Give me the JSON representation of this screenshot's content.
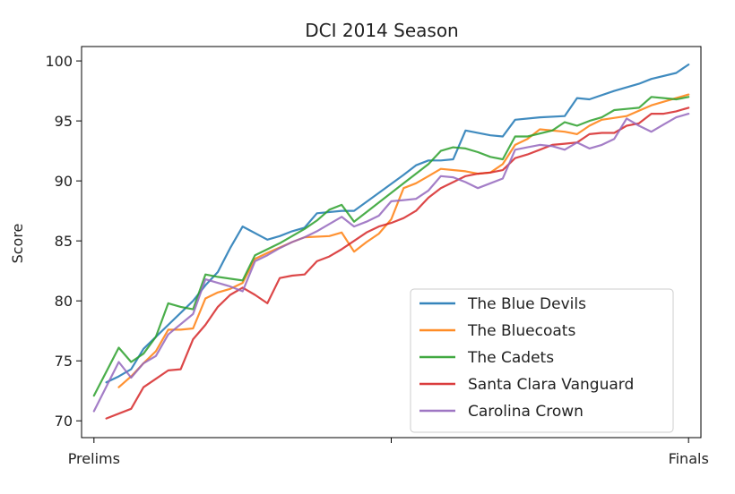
{
  "chart_data": {
    "type": "line",
    "title": "DCI 2014 Season",
    "xlabel": "",
    "ylabel": "Score",
    "xlim": [
      -1,
      49
    ],
    "ylim": [
      68.6,
      101.2
    ],
    "x_ticks": [
      {
        "x": 0,
        "label": "Prelims"
      },
      {
        "x": 24,
        "label": ""
      },
      {
        "x": 48,
        "label": "Finals"
      }
    ],
    "y_ticks": [
      70,
      75,
      80,
      85,
      90,
      95,
      100
    ],
    "grid": false,
    "legend_position": "lower-right",
    "series": [
      {
        "name": "The Blue Devils",
        "color": "#1f77b4",
        "points": [
          [
            1,
            73.2
          ],
          [
            2,
            73.7
          ],
          [
            3,
            74.3
          ],
          [
            4,
            76.0
          ],
          [
            5,
            77.0
          ],
          [
            6,
            78.0
          ],
          [
            7,
            79.0
          ],
          [
            8,
            80.0
          ],
          [
            9,
            81.3
          ],
          [
            10,
            82.4
          ],
          [
            11,
            84.4
          ],
          [
            12,
            86.2
          ],
          [
            14,
            85.1
          ],
          [
            15,
            85.4
          ],
          [
            16,
            85.8
          ],
          [
            17,
            86.1
          ],
          [
            18,
            87.3
          ],
          [
            20,
            87.5
          ],
          [
            21,
            87.5
          ],
          [
            23,
            89.0
          ],
          [
            25,
            90.5
          ],
          [
            26,
            91.3
          ],
          [
            27,
            91.7
          ],
          [
            28,
            91.7
          ],
          [
            29,
            91.8
          ],
          [
            30,
            94.2
          ],
          [
            32,
            93.8
          ],
          [
            33,
            93.7
          ],
          [
            34,
            95.1
          ],
          [
            36,
            95.3
          ],
          [
            38,
            95.4
          ],
          [
            39,
            96.9
          ],
          [
            40,
            96.8
          ],
          [
            42,
            97.5
          ],
          [
            44,
            98.1
          ],
          [
            45,
            98.5
          ],
          [
            47,
            99.0
          ],
          [
            48,
            99.7
          ]
        ]
      },
      {
        "name": "The Bluecoats",
        "color": "#ff7f0e",
        "points": [
          [
            2,
            72.8
          ],
          [
            3,
            73.7
          ],
          [
            4,
            74.8
          ],
          [
            5,
            75.8
          ],
          [
            6,
            77.6
          ],
          [
            7,
            77.6
          ],
          [
            8,
            77.7
          ],
          [
            9,
            80.2
          ],
          [
            10,
            80.7
          ],
          [
            11,
            81.0
          ],
          [
            12,
            81.5
          ],
          [
            13,
            83.5
          ],
          [
            14,
            84.0
          ],
          [
            16,
            84.9
          ],
          [
            17,
            85.3
          ],
          [
            19,
            85.4
          ],
          [
            20,
            85.7
          ],
          [
            21,
            84.1
          ],
          [
            22,
            84.9
          ],
          [
            23,
            85.6
          ],
          [
            24,
            86.8
          ],
          [
            25,
            89.4
          ],
          [
            26,
            89.8
          ],
          [
            27,
            90.4
          ],
          [
            28,
            91.0
          ],
          [
            30,
            90.8
          ],
          [
            31,
            90.6
          ],
          [
            32,
            90.7
          ],
          [
            33,
            91.4
          ],
          [
            34,
            93.0
          ],
          [
            35,
            93.5
          ],
          [
            36,
            94.3
          ],
          [
            38,
            94.1
          ],
          [
            39,
            93.9
          ],
          [
            40,
            94.6
          ],
          [
            41,
            95.1
          ],
          [
            43,
            95.4
          ],
          [
            45,
            96.3
          ],
          [
            47,
            96.9
          ],
          [
            48,
            97.2
          ]
        ]
      },
      {
        "name": "The Cadets",
        "color": "#2ca02c",
        "points": [
          [
            0,
            72.1
          ],
          [
            2,
            76.1
          ],
          [
            3,
            74.9
          ],
          [
            4,
            75.6
          ],
          [
            5,
            77.0
          ],
          [
            6,
            79.8
          ],
          [
            7,
            79.5
          ],
          [
            8,
            79.3
          ],
          [
            9,
            82.2
          ],
          [
            10,
            82.0
          ],
          [
            12,
            81.7
          ],
          [
            13,
            83.8
          ],
          [
            15,
            84.8
          ],
          [
            16,
            85.4
          ],
          [
            17,
            86.0
          ],
          [
            18,
            86.7
          ],
          [
            19,
            87.6
          ],
          [
            20,
            88.0
          ],
          [
            21,
            86.6
          ],
          [
            22,
            87.4
          ],
          [
            23,
            88.2
          ],
          [
            24,
            89.0
          ],
          [
            25,
            89.8
          ],
          [
            26,
            90.6
          ],
          [
            27,
            91.4
          ],
          [
            28,
            92.5
          ],
          [
            29,
            92.8
          ],
          [
            30,
            92.7
          ],
          [
            31,
            92.4
          ],
          [
            32,
            92.0
          ],
          [
            33,
            91.8
          ],
          [
            34,
            93.7
          ],
          [
            35,
            93.7
          ],
          [
            37,
            94.2
          ],
          [
            38,
            94.9
          ],
          [
            39,
            94.6
          ],
          [
            40,
            95.0
          ],
          [
            41,
            95.3
          ],
          [
            42,
            95.9
          ],
          [
            43,
            96.0
          ],
          [
            44,
            96.1
          ],
          [
            45,
            97.0
          ],
          [
            46,
            96.9
          ],
          [
            47,
            96.8
          ],
          [
            48,
            97.0
          ]
        ]
      },
      {
        "name": "Santa Clara Vanguard",
        "color": "#d62728",
        "points": [
          [
            1,
            70.2
          ],
          [
            3,
            71.0
          ],
          [
            4,
            72.8
          ],
          [
            5,
            73.5
          ],
          [
            6,
            74.2
          ],
          [
            7,
            74.3
          ],
          [
            8,
            76.8
          ],
          [
            9,
            78.0
          ],
          [
            10,
            79.5
          ],
          [
            11,
            80.5
          ],
          [
            12,
            81.1
          ],
          [
            13,
            80.5
          ],
          [
            14,
            79.8
          ],
          [
            15,
            81.9
          ],
          [
            16,
            82.1
          ],
          [
            17,
            82.2
          ],
          [
            18,
            83.3
          ],
          [
            19,
            83.7
          ],
          [
            20,
            84.3
          ],
          [
            21,
            85.0
          ],
          [
            22,
            85.7
          ],
          [
            23,
            86.2
          ],
          [
            24,
            86.5
          ],
          [
            25,
            86.9
          ],
          [
            26,
            87.5
          ],
          [
            27,
            88.6
          ],
          [
            28,
            89.4
          ],
          [
            29,
            89.9
          ],
          [
            30,
            90.4
          ],
          [
            31,
            90.6
          ],
          [
            32,
            90.7
          ],
          [
            33,
            90.9
          ],
          [
            34,
            91.9
          ],
          [
            35,
            92.2
          ],
          [
            36,
            92.6
          ],
          [
            37,
            93.0
          ],
          [
            38,
            93.1
          ],
          [
            39,
            93.2
          ],
          [
            40,
            93.9
          ],
          [
            41,
            94.0
          ],
          [
            42,
            94.0
          ],
          [
            43,
            94.6
          ],
          [
            44,
            94.8
          ],
          [
            45,
            95.6
          ],
          [
            46,
            95.6
          ],
          [
            47,
            95.8
          ],
          [
            48,
            96.1
          ]
        ]
      },
      {
        "name": "Carolina Crown",
        "color": "#9467bd",
        "points": [
          [
            0,
            70.8
          ],
          [
            2,
            74.9
          ],
          [
            3,
            73.6
          ],
          [
            4,
            74.8
          ],
          [
            5,
            75.4
          ],
          [
            6,
            77.2
          ],
          [
            8,
            78.9
          ],
          [
            9,
            81.8
          ],
          [
            10,
            81.5
          ],
          [
            11,
            81.2
          ],
          [
            12,
            80.8
          ],
          [
            13,
            83.3
          ],
          [
            14,
            83.8
          ],
          [
            15,
            84.4
          ],
          [
            16,
            84.9
          ],
          [
            17,
            85.3
          ],
          [
            18,
            85.8
          ],
          [
            20,
            87.0
          ],
          [
            21,
            86.2
          ],
          [
            22,
            86.6
          ],
          [
            23,
            87.1
          ],
          [
            24,
            88.3
          ],
          [
            25,
            88.4
          ],
          [
            26,
            88.5
          ],
          [
            27,
            89.2
          ],
          [
            28,
            90.4
          ],
          [
            29,
            90.3
          ],
          [
            30,
            89.9
          ],
          [
            31,
            89.4
          ],
          [
            32,
            89.8
          ],
          [
            33,
            90.2
          ],
          [
            34,
            92.6
          ],
          [
            35,
            92.8
          ],
          [
            36,
            93.0
          ],
          [
            37,
            92.9
          ],
          [
            38,
            92.6
          ],
          [
            39,
            93.2
          ],
          [
            40,
            92.7
          ],
          [
            41,
            93.0
          ],
          [
            42,
            93.5
          ],
          [
            43,
            95.2
          ],
          [
            44,
            94.6
          ],
          [
            45,
            94.1
          ],
          [
            46,
            94.7
          ],
          [
            47,
            95.3
          ],
          [
            48,
            95.6
          ]
        ]
      }
    ]
  }
}
